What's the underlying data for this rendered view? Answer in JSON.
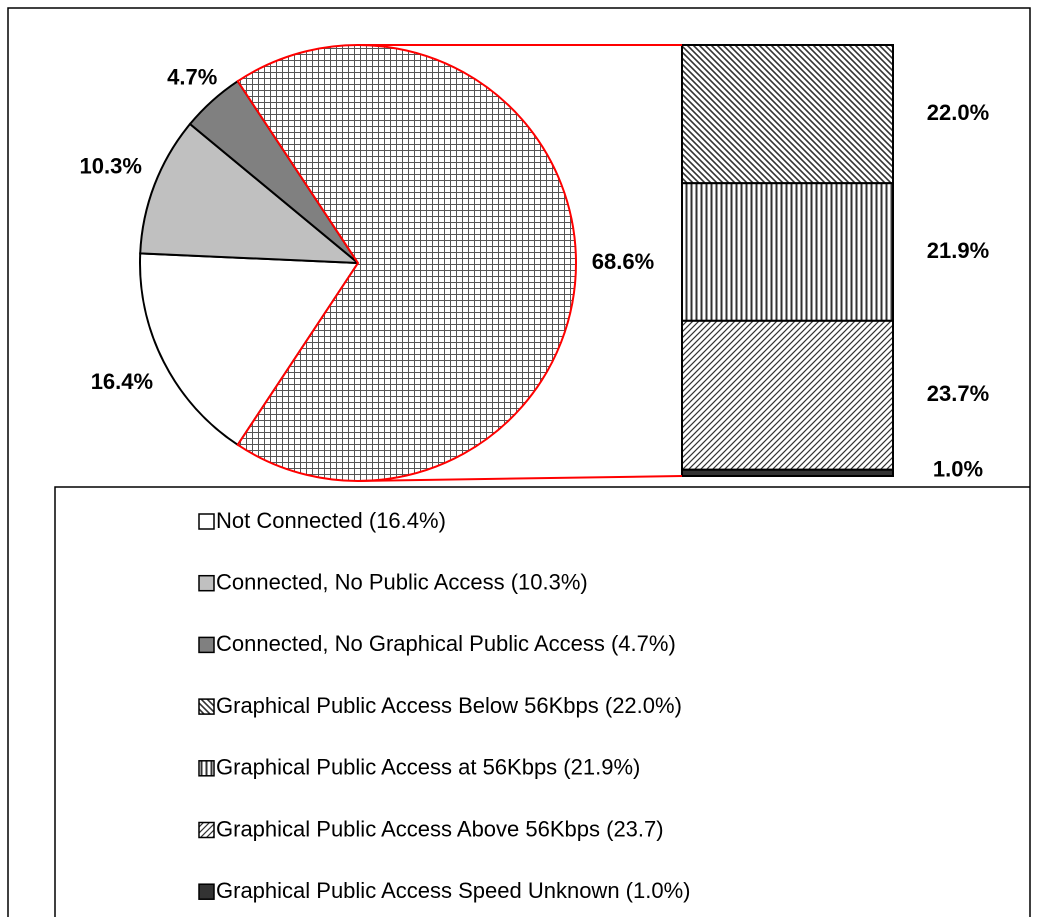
{
  "chart_data": {
    "type": "pie-of-bar",
    "pie": {
      "categories": [
        "Not Connected (16.4%)",
        "Connected, No Public Access (10.3%)",
        "Connected, No Graphical Public Access (4.7%)",
        null
      ],
      "values": [
        16.4,
        10.3,
        4.7,
        68.6
      ],
      "value_labels": [
        "16.4%",
        "10.3%",
        "4.7%",
        "68.6%"
      ],
      "fills": [
        "#ffffff",
        "#c0c0c0",
        "#808080",
        "crosshatch"
      ]
    },
    "bar": {
      "categories": [
        "Graphical Public Access Below 56Kbps (22.0%)",
        "Graphical Public Access at 56Kbps (21.9%)",
        "Graphical Public Access Above 56Kbps (23.7)",
        "Graphical Public Access Speed Unknown  (1.0%)"
      ],
      "values": [
        22.0,
        21.9,
        23.7,
        1.0
      ],
      "value_labels": [
        "22.0%",
        "21.9%",
        "23.7%",
        "1.0%"
      ],
      "fills": [
        "hatch-back",
        "hatch-vertical",
        "hatch-forward",
        "#333333"
      ]
    },
    "connector_color": "#ff0000"
  }
}
